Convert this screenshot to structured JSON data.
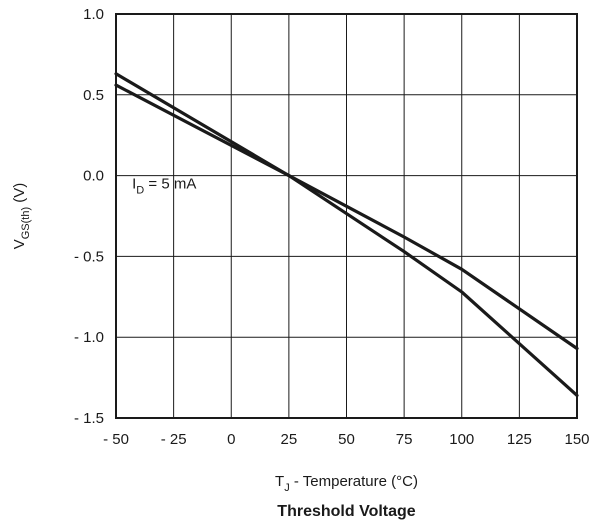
{
  "chart_data": {
    "type": "line",
    "title": "Threshold Voltage",
    "xlabel": {
      "main": "T",
      "sub": "J",
      "rest": " - Temperature (°C)"
    },
    "ylabel": {
      "main": "V",
      "sub": "GS(th)",
      "rest": " (V)"
    },
    "xlim": [
      -50,
      150
    ],
    "ylim": [
      -1.5,
      1.0
    ],
    "grid": true,
    "x_ticks": [
      {
        "value": -50,
        "label": "- 50"
      },
      {
        "value": -25,
        "label": "- 25"
      },
      {
        "value": 0,
        "label": "0"
      },
      {
        "value": 25,
        "label": "25"
      },
      {
        "value": 50,
        "label": "50"
      },
      {
        "value": 75,
        "label": "75"
      },
      {
        "value": 100,
        "label": "100"
      },
      {
        "value": 125,
        "label": "125"
      },
      {
        "value": 150,
        "label": "150"
      }
    ],
    "y_ticks": [
      {
        "value": 1.0,
        "label": "1.0"
      },
      {
        "value": 0.5,
        "label": "0.5"
      },
      {
        "value": 0.0,
        "label": "0.0"
      },
      {
        "value": -0.5,
        "label": "- 0.5"
      },
      {
        "value": -1.0,
        "label": "- 1.0"
      },
      {
        "value": -1.5,
        "label": "- 1.5"
      }
    ],
    "annotation": {
      "main": "I",
      "sub": "D",
      "rest": " = 5 mA",
      "x": -43,
      "y": -0.08
    },
    "series": [
      {
        "x": [
          -50,
          25,
          75,
          100,
          150
        ],
        "y": [
          0.63,
          0.0,
          -0.47,
          -0.72,
          -1.36
        ]
      },
      {
        "x": [
          -50,
          25,
          75,
          100,
          150
        ],
        "y": [
          0.56,
          0.0,
          -0.38,
          -0.58,
          -1.07
        ]
      }
    ]
  }
}
